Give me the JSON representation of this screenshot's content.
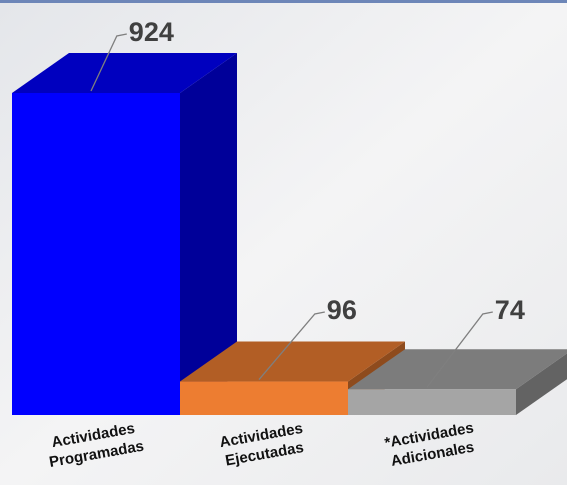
{
  "chart_data": {
    "type": "bar3d",
    "categories": [
      "Actividades Programadas",
      "Actividades Ejecutadas",
      "*Actividades Adicionales"
    ],
    "values": [
      924,
      96,
      74
    ],
    "colors": [
      "#0000ff",
      "#ed7d31",
      "#a5a5a5"
    ]
  }
}
